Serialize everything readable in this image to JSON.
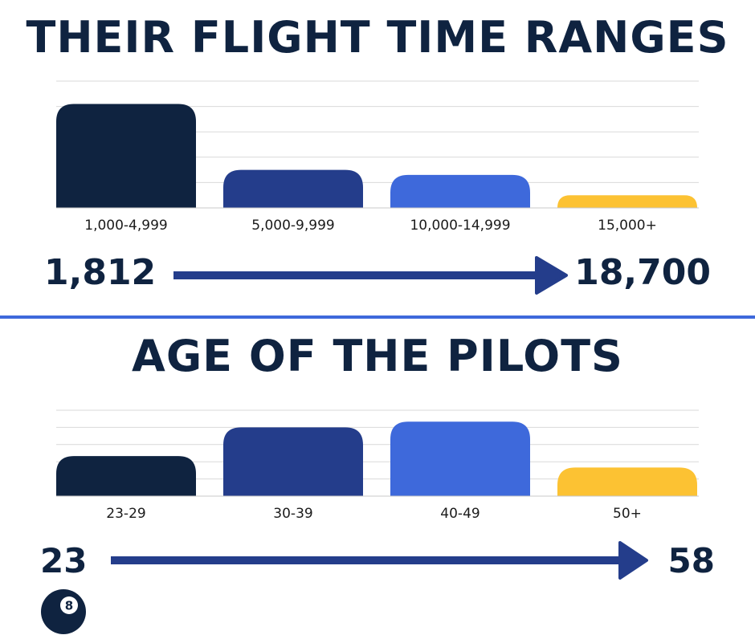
{
  "chart_data": [
    {
      "type": "bar",
      "title": "THEIR FLIGHT TIME RANGES",
      "categories": [
        "1,000-4,999",
        "5,000-9,999",
        "10,000-14,999",
        "15,000+"
      ],
      "values": [
        41,
        15,
        13,
        5
      ],
      "ylim": [
        0,
        50
      ],
      "grid": true,
      "colors": [
        "#0f2340",
        "#243d8b",
        "#3e69db",
        "#fcc233"
      ],
      "range_min": "1,812",
      "range_max": "18,700"
    },
    {
      "type": "bar",
      "title": "AGE OF THE PILOTS",
      "categories": [
        "23-29",
        "30-39",
        "40-49",
        "50+"
      ],
      "values": [
        14,
        24,
        26,
        10
      ],
      "ylim": [
        0,
        30
      ],
      "grid": true,
      "colors": [
        "#0f2340",
        "#243d8b",
        "#3e69db",
        "#fcc233"
      ],
      "range_min": "23",
      "range_max": "58"
    }
  ],
  "arrow_color": "#243d8b",
  "divider_color": "#3e69db",
  "logo": {
    "icon": "eight-ball-icon",
    "glyph": "8"
  }
}
